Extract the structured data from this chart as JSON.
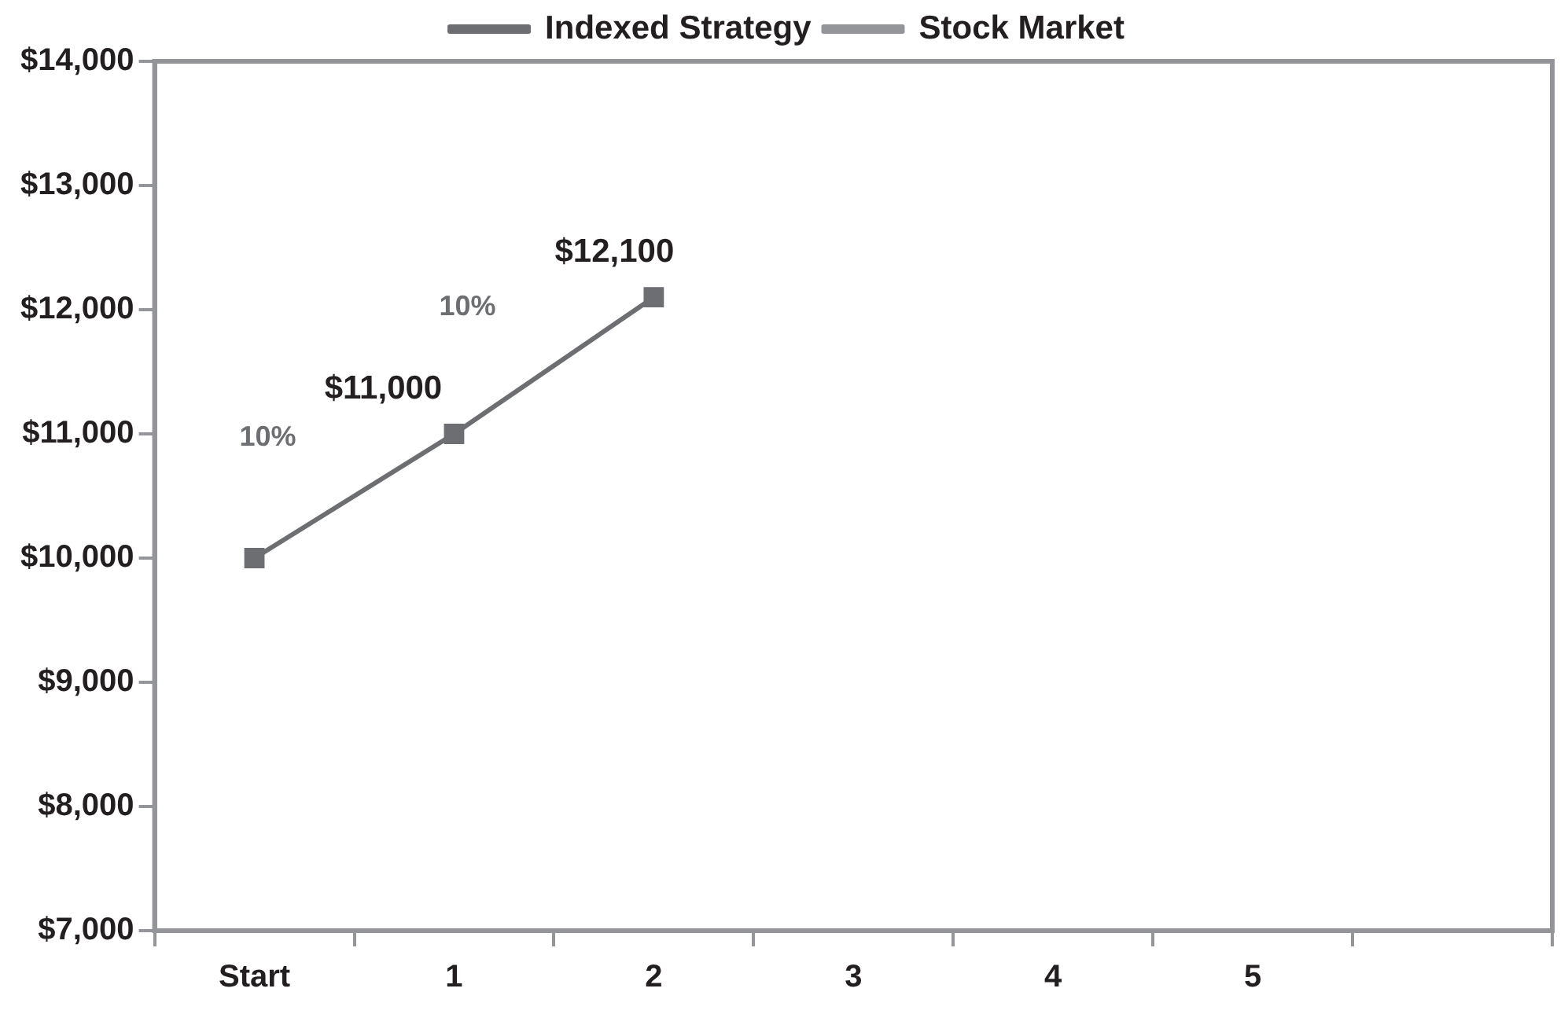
{
  "chart_data": {
    "type": "line",
    "categories": [
      "Start",
      "1",
      "2",
      "3",
      "4",
      "5",
      null
    ],
    "series": [
      {
        "name": "Indexed Strategy",
        "color": "#6d6e71",
        "values": [
          10000,
          11000,
          12100,
          null,
          null,
          null,
          null
        ],
        "value_labels": [
          null,
          "$11,000",
          "$12,100",
          null,
          null,
          null,
          null
        ]
      },
      {
        "name": "Stock Market",
        "color": "#939598",
        "values": [
          null,
          null,
          null,
          null,
          null,
          null,
          null
        ]
      }
    ],
    "ylim": [
      7000,
      14000
    ],
    "yticks": [
      {
        "value": 7000,
        "label": "$7,000"
      },
      {
        "value": 8000,
        "label": "$8,000"
      },
      {
        "value": 9000,
        "label": "$9,000"
      },
      {
        "value": 10000,
        "label": "$10,000"
      },
      {
        "value": 11000,
        "label": "$11,000"
      },
      {
        "value": 12000,
        "label": "$12,000"
      },
      {
        "value": 13000,
        "label": "$13,000"
      },
      {
        "value": 14000,
        "label": "$14,000"
      }
    ],
    "annotations": [
      "10%",
      "10%"
    ],
    "grid": false,
    "legend": "top",
    "marker": "square",
    "line_style": "solid"
  }
}
